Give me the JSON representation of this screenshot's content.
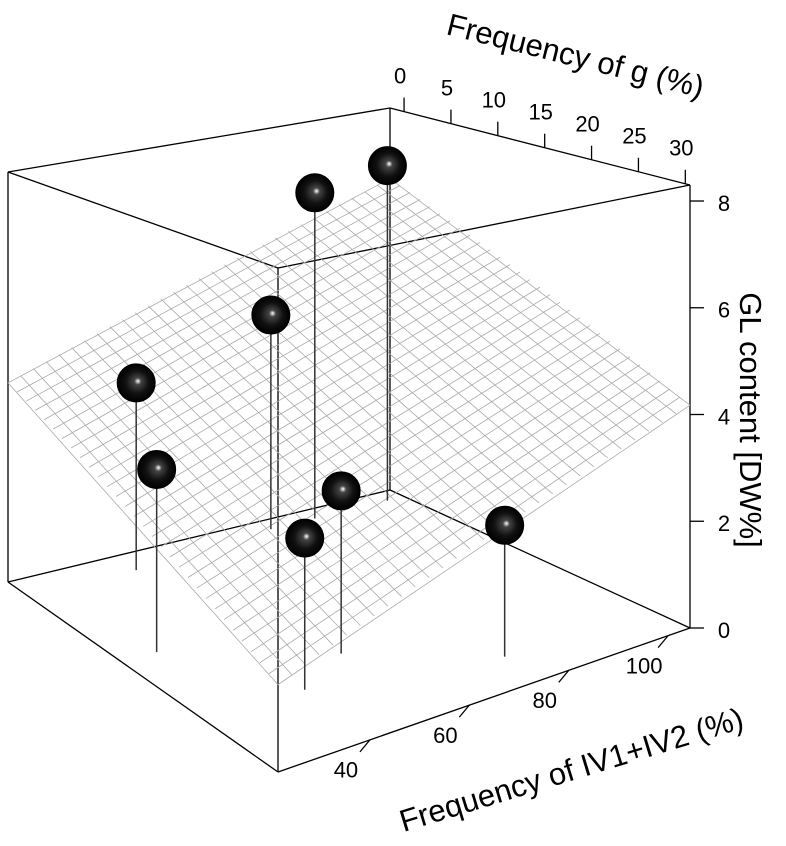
{
  "chart_data": {
    "type": "scatter3d",
    "x_label": "Frequency of IV1+IV2 (%)",
    "y_label": "Frequency of g (%)",
    "z_label": "GL content [DW%]",
    "x": [
      44.6,
      28.8,
      75.6,
      85.1,
      100.8,
      41.7,
      54.6,
      75.3
    ],
    "y": [
      1,
      12,
      0,
      0,
      0,
      22,
      19,
      26
    ],
    "z": [
      3.8,
      3.4,
      4.5,
      6.9,
      7.2,
      2.7,
      3.0,
      2.4
    ],
    "color": "#000000",
    "xlim": [
      21.5,
      104.4
    ],
    "ylim": [
      -1.5,
      30.5
    ],
    "zlim": [
      0,
      8.3
    ],
    "xticks": [
      40,
      60,
      80,
      100
    ],
    "yticks": [
      0,
      5,
      10,
      15,
      20,
      25,
      30
    ],
    "zticks": [
      0,
      2,
      4,
      6,
      8
    ],
    "surface": {
      "intercept": 3.2,
      "x_coef": 0.033,
      "y_coef": -0.081,
      "color": "#aaaaaa"
    }
  }
}
